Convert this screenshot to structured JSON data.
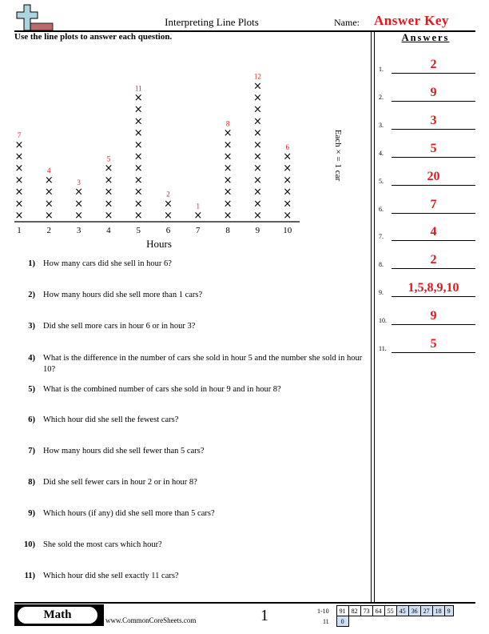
{
  "header": {
    "title": "Interpreting Line Plots",
    "name_label": "Name:",
    "name_value": "Answer Key",
    "logo_icon": "plus-ruler-logo"
  },
  "instructions": "Use the line plots to answer each question.",
  "chart_data": {
    "type": "line-plot",
    "categories": [
      "1",
      "2",
      "3",
      "4",
      "5",
      "6",
      "7",
      "8",
      "9",
      "10"
    ],
    "values": [
      7,
      4,
      3,
      5,
      11,
      2,
      1,
      8,
      12,
      6
    ],
    "xlabel": "Hours",
    "key": "Each × = 1 car",
    "mark": "×",
    "count_label_color": "#e8141b"
  },
  "questions": [
    {
      "n": "1)",
      "text": "How many cars did she sell in hour 6?"
    },
    {
      "n": "2)",
      "text": "How many hours did she sell more than 1 cars?"
    },
    {
      "n": "3)",
      "text": "Did she sell more cars in hour 6 or in hour 3?"
    },
    {
      "n": "4)",
      "text": "What is the difference in the number of cars she sold in hour 5 and the number she sold in hour 10?"
    },
    {
      "n": "5)",
      "text": "What is the combined number of cars she sold in hour 9 and in hour 8?"
    },
    {
      "n": "6)",
      "text": "Which hour did she sell the fewest cars?"
    },
    {
      "n": "7)",
      "text": "How many hours did she sell fewer than 5 cars?"
    },
    {
      "n": "8)",
      "text": "Did she sell fewer cars in hour 2 or in hour 8?"
    },
    {
      "n": "9)",
      "text": "Which hours (if any) did she sell more than 5 cars?"
    },
    {
      "n": "10)",
      "text": "She sold the most cars which hour?"
    },
    {
      "n": "11)",
      "text": "Which hour did she sell exactly 11 cars?"
    }
  ],
  "answers": {
    "heading": "Answers",
    "items": [
      {
        "n": "1.",
        "v": "2"
      },
      {
        "n": "2.",
        "v": "9"
      },
      {
        "n": "3.",
        "v": "3"
      },
      {
        "n": "4.",
        "v": "5"
      },
      {
        "n": "5.",
        "v": "20"
      },
      {
        "n": "6.",
        "v": "7"
      },
      {
        "n": "7.",
        "v": "4"
      },
      {
        "n": "8.",
        "v": "2"
      },
      {
        "n": "9.",
        "v": "1,5,8,9,10"
      },
      {
        "n": "10.",
        "v": "9"
      },
      {
        "n": "11.",
        "v": "5"
      }
    ]
  },
  "footer": {
    "subject": "Math",
    "url": "www.CommonCoreSheets.com",
    "page": "1",
    "score_rows": [
      {
        "label": "1-10",
        "cells": [
          "91",
          "82",
          "73",
          "64",
          "55",
          "45",
          "36",
          "27",
          "18",
          "9"
        ]
      },
      {
        "label": "11",
        "cells": [
          "0"
        ]
      }
    ]
  }
}
